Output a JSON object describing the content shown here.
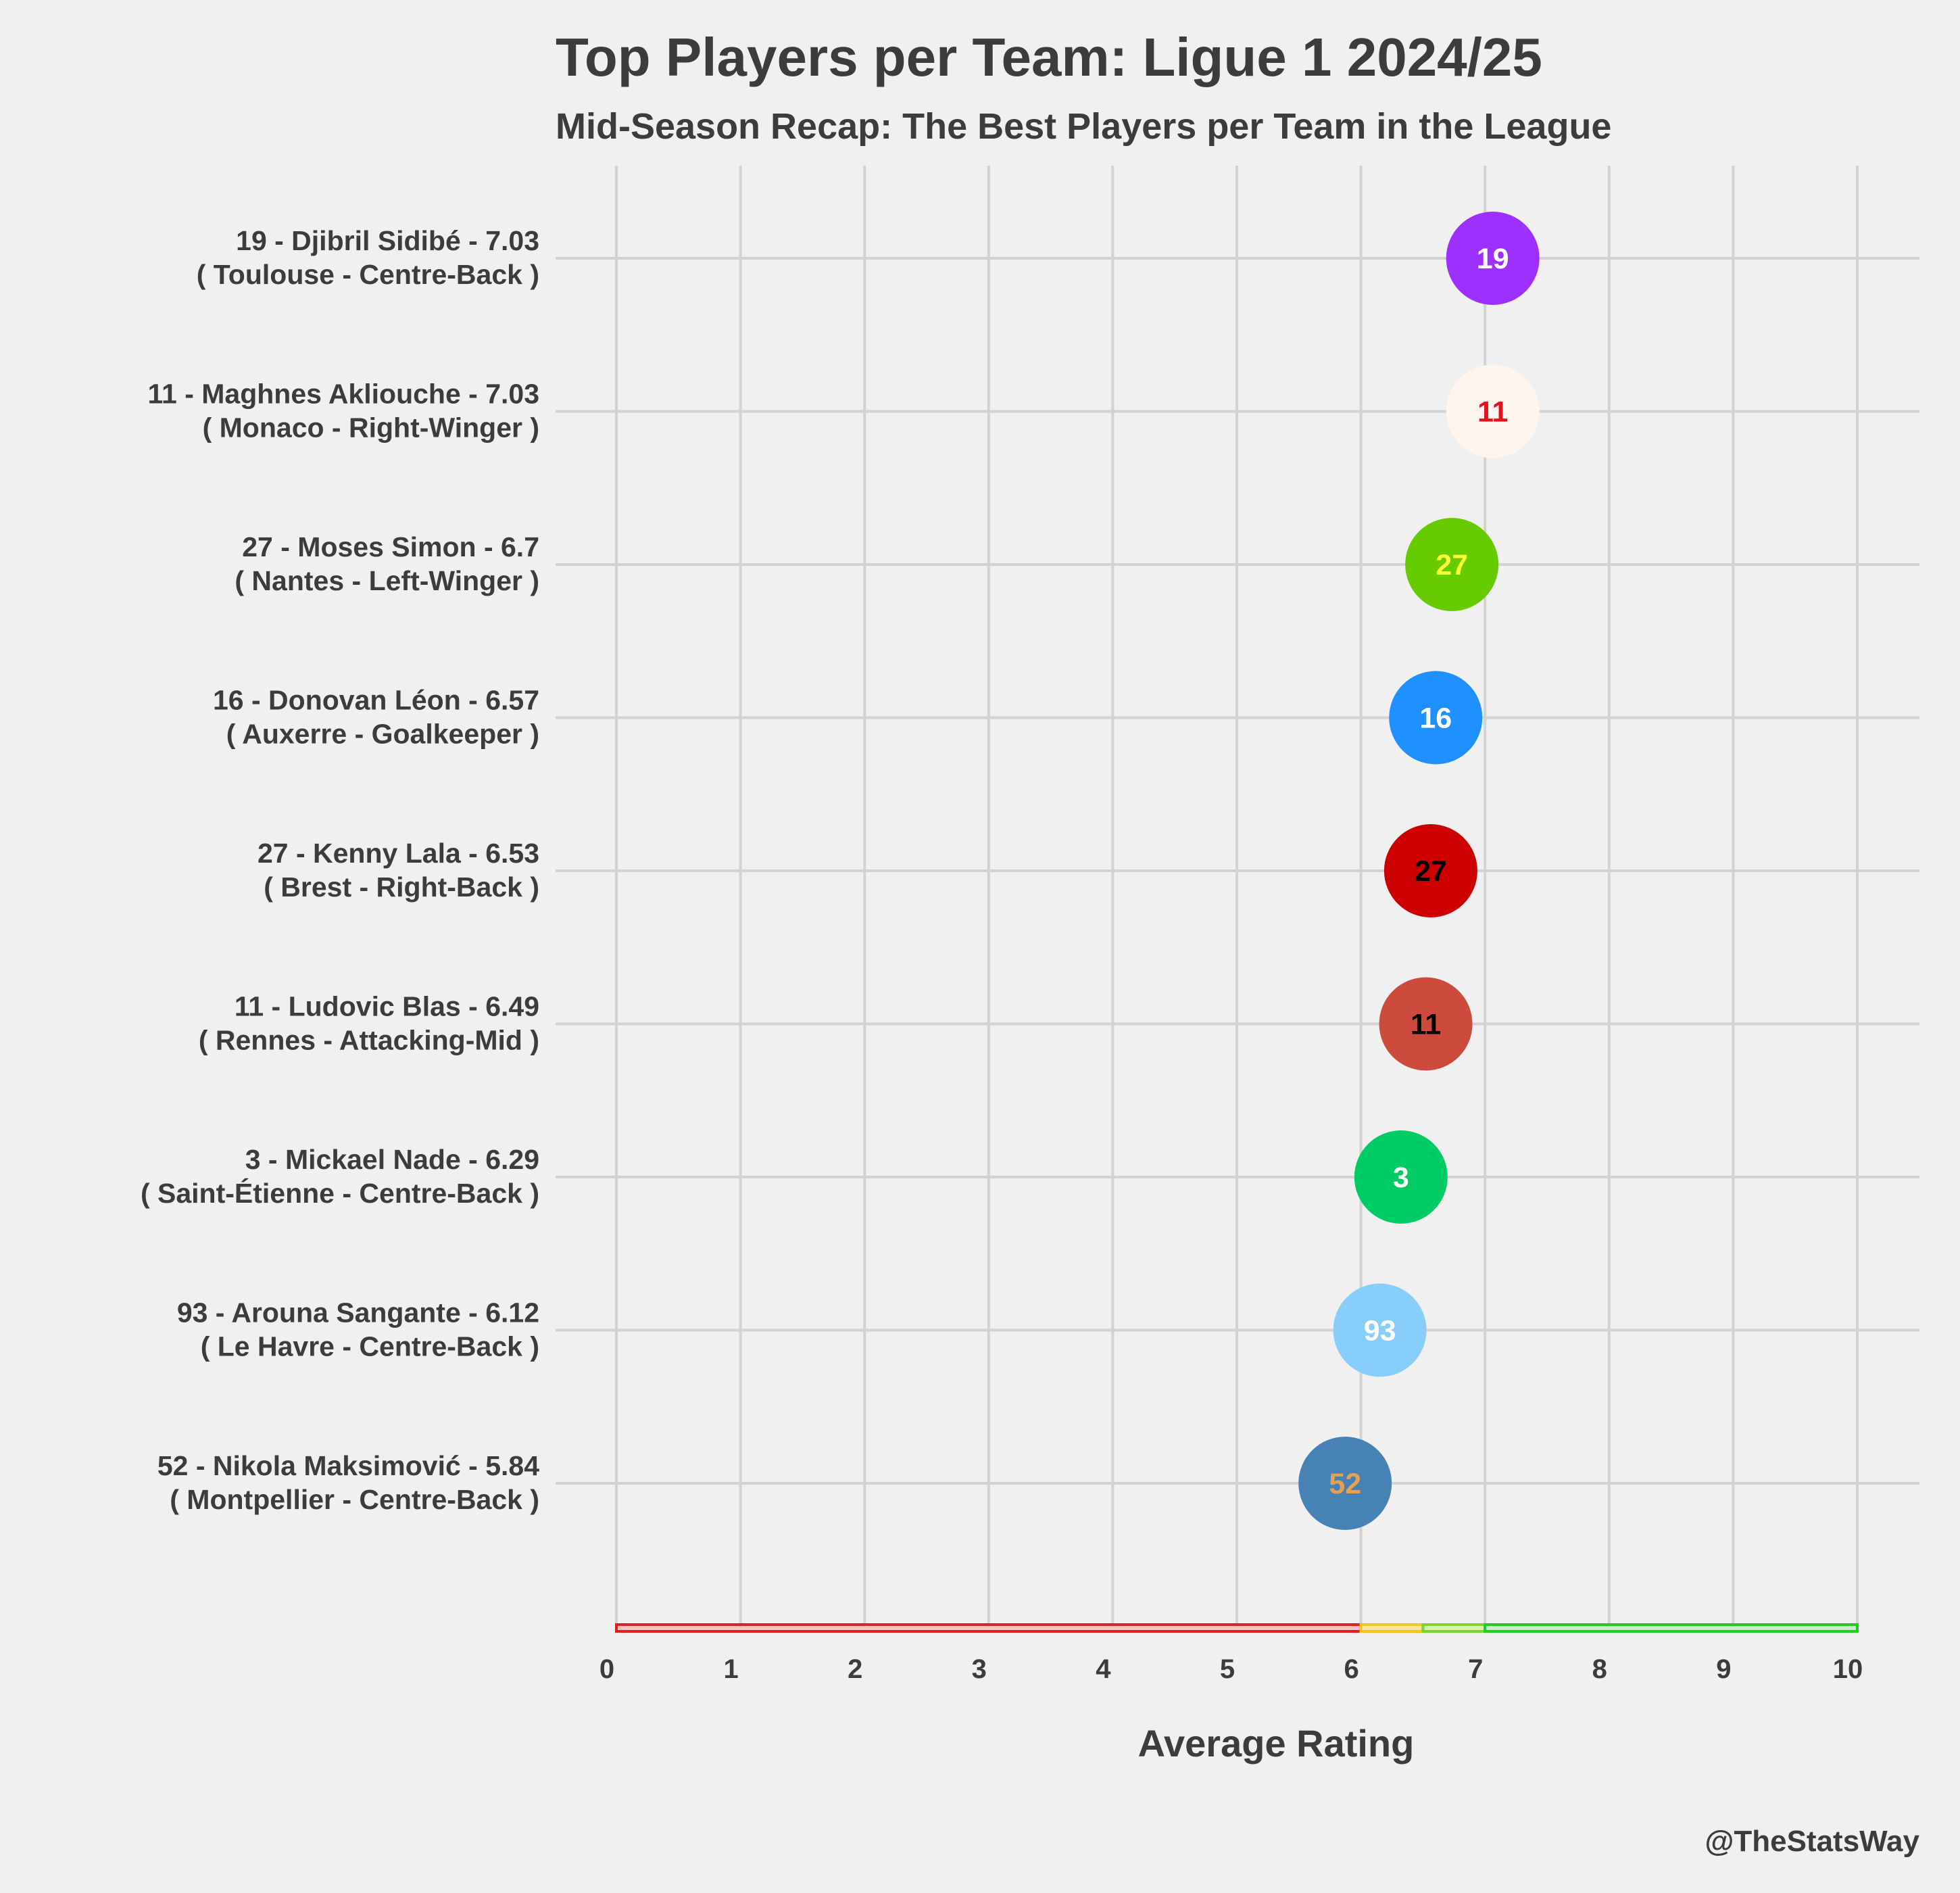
{
  "chart_data": {
    "type": "scatter",
    "title": "Top Players per Team: Ligue 1 2024/25",
    "subtitle": "Mid-Season Recap: The Best Players per Team in the League",
    "xlabel": "Average Rating",
    "ylabel": "",
    "xlim": [
      0,
      10
    ],
    "x_ticks": [
      "0",
      "1",
      "2",
      "3",
      "4",
      "5",
      "6",
      "7",
      "8",
      "9",
      "10"
    ],
    "grid": true,
    "credit": "@TheStatsWay",
    "players": [
      {
        "number": "19",
        "label_line1": "19 - Djibril Sidibé - 7.03",
        "label_line2": "( Toulouse - Centre-Back )",
        "rating": 7.03,
        "fill": "#9b30ff",
        "text_color": "#ffffff"
      },
      {
        "number": "11",
        "label_line1": "11 - Maghnes Akliouche - 7.03",
        "label_line2": "( Monaco - Right-Winger )",
        "rating": 7.03,
        "fill": "#fdf5ee",
        "text_color": "#e8101a"
      },
      {
        "number": "27",
        "label_line1": "27 - Moses Simon - 6.7",
        "label_line2": "( Nantes - Left-Winger )",
        "rating": 6.7,
        "fill": "#66cc00",
        "text_color": "#ffff33"
      },
      {
        "number": "16",
        "label_line1": "16 - Donovan Léon - 6.57",
        "label_line2": "( Auxerre - Goalkeeper )",
        "rating": 6.57,
        "fill": "#1e90ff",
        "text_color": "#ffffff"
      },
      {
        "number": "27",
        "label_line1": "27 - Kenny Lala - 6.53",
        "label_line2": "( Brest - Right-Back )",
        "rating": 6.53,
        "fill": "#cc0000",
        "text_color": "#000000"
      },
      {
        "number": "11",
        "label_line1": "11 - Ludovic Blas - 6.49",
        "label_line2": "( Rennes - Attacking-Mid )",
        "rating": 6.49,
        "fill": "#cd4b3c",
        "text_color": "#000000"
      },
      {
        "number": "3",
        "label_line1": "3 - Mickael Nade - 6.29",
        "label_line2": "( Saint-Étienne - Centre-Back )",
        "rating": 6.29,
        "fill": "#00cc66",
        "text_color": "#ffffff"
      },
      {
        "number": "93",
        "label_line1": "93 - Arouna Sangante - 6.12",
        "label_line2": "( Le Havre - Centre-Back )",
        "rating": 6.12,
        "fill": "#87cefa",
        "text_color": "#ffffff"
      },
      {
        "number": "52",
        "label_line1": "52 - Nikola Maksimović - 5.84",
        "label_line2": "( Montpellier - Centre-Back )",
        "rating": 5.84,
        "fill": "#4682b4",
        "text_color": "#e8a050"
      }
    ],
    "rating_bands": [
      {
        "from": 0,
        "to": 6.0,
        "fill": "#f6c4c4",
        "stroke": "#e02020"
      },
      {
        "from": 6.0,
        "to": 6.5,
        "fill": "#f7e6a8",
        "stroke": "#f5c518"
      },
      {
        "from": 6.5,
        "to": 7.0,
        "fill": "#d8f0b0",
        "stroke": "#7cd32a"
      },
      {
        "from": 7.0,
        "to": 10.0,
        "fill": "#c8f0c8",
        "stroke": "#22cc22"
      }
    ]
  }
}
